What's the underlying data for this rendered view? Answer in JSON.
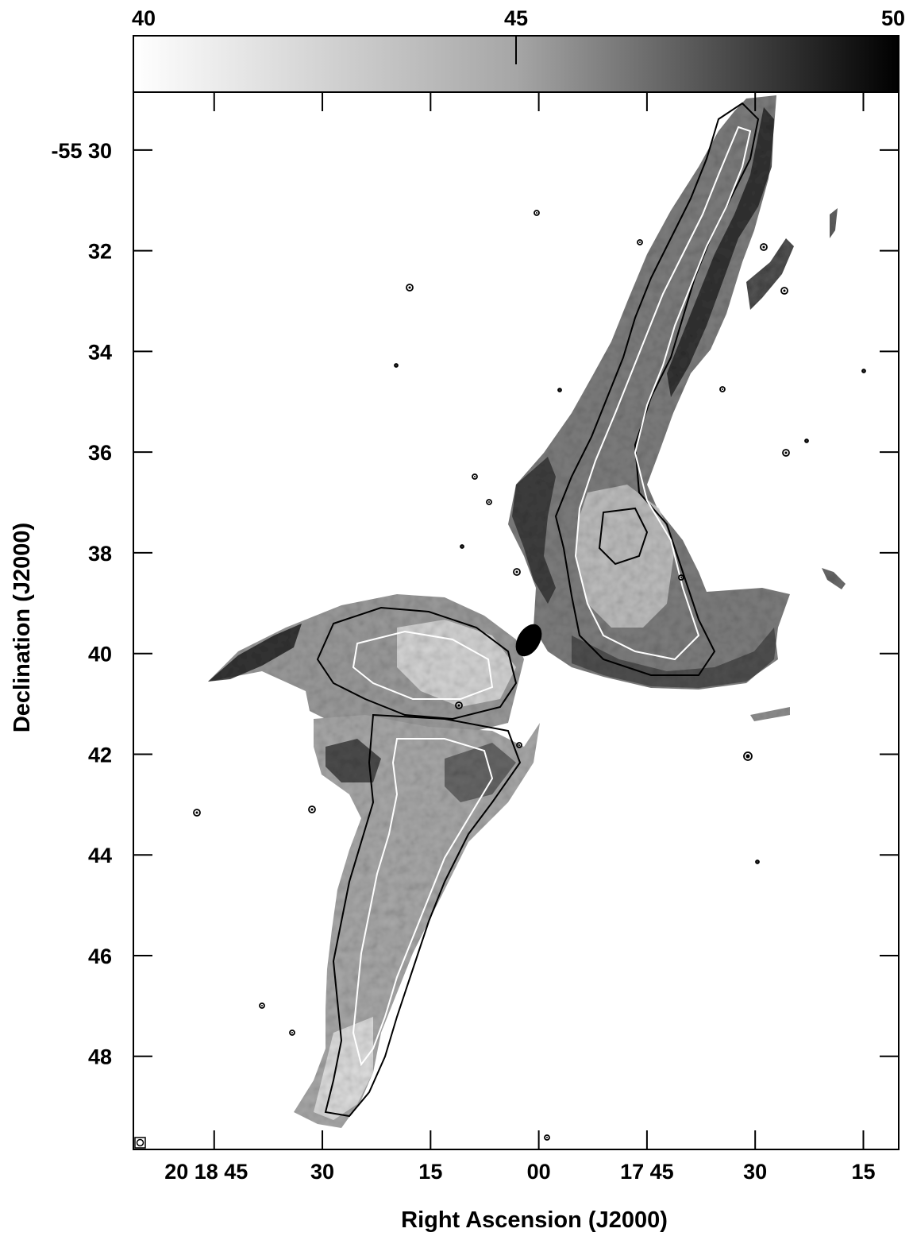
{
  "chart_data": {
    "type": "heatmap",
    "title": "",
    "xlabel": "Right Ascension (J2000)",
    "ylabel": "Declination (J2000)",
    "colorbar": {
      "min": 40,
      "max": 50,
      "ticks": [
        {
          "value": 40,
          "label": "40"
        },
        {
          "value": 45,
          "label": "45"
        },
        {
          "value": 50,
          "label": "50"
        }
      ],
      "colormap": "grayscale (white to black)",
      "placement": "top"
    },
    "x_ticks": [
      {
        "value_s": 45,
        "label": "20 18 45"
      },
      {
        "value_s": 30,
        "label": "30"
      },
      {
        "value_s": 15,
        "label": "15"
      },
      {
        "value_s": 0,
        "label": "00"
      },
      {
        "value_s": -15,
        "label": "17 45"
      },
      {
        "value_s": -30,
        "label": "30"
      },
      {
        "value_s": -45,
        "label": "15"
      }
    ],
    "y_ticks": [
      {
        "value_arcmin": 30,
        "label": "-55 30"
      },
      {
        "value_arcmin": 32,
        "label": "32"
      },
      {
        "value_arcmin": 34,
        "label": "34"
      },
      {
        "value_arcmin": 36,
        "label": "36"
      },
      {
        "value_arcmin": 38,
        "label": "38"
      },
      {
        "value_arcmin": 40,
        "label": "40"
      },
      {
        "value_arcmin": 42,
        "label": "42"
      },
      {
        "value_arcmin": 44,
        "label": "44"
      },
      {
        "value_arcmin": 46,
        "label": "46"
      },
      {
        "value_arcmin": 48,
        "label": "48"
      }
    ],
    "xlim_s": [
      56.2,
      -49.9
    ],
    "ylim_arcmin": [
      28.85,
      49.85
    ],
    "x_direction": "right ascension decreasing to the right",
    "y_direction": "declination increasing (more southern) downward",
    "contours": "black and white contour overlay",
    "grid": false,
    "beam_marker": "bottom-left"
  },
  "colors": {
    "background": "#ffffff",
    "axis": "#000000",
    "emission_light": "#d8d8d8",
    "emission_dark": "#1a1a1a"
  }
}
